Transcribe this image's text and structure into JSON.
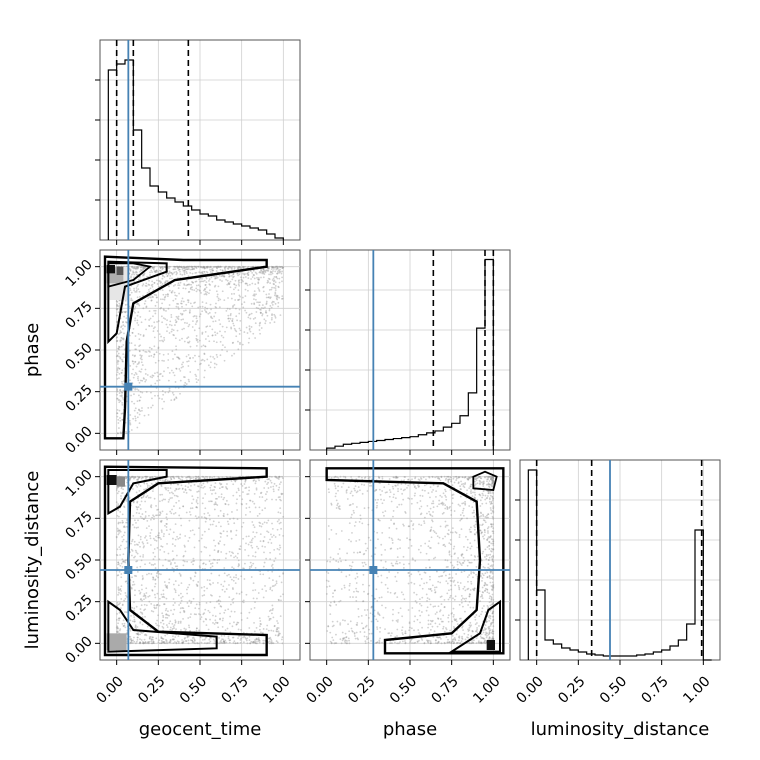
{
  "chart_data": {
    "type": "corner",
    "parameters": [
      "geocent_time",
      "phase",
      "luminosity_distance"
    ],
    "axis_labels": {
      "geocent_time": "geocent_time",
      "phase": "phase",
      "luminosity_distance": "luminosity_distance"
    },
    "tick_values": [
      0.0,
      0.25,
      0.5,
      0.75,
      1.0
    ],
    "tick_labels": [
      "0.00",
      "0.25",
      "0.50",
      "0.75",
      "1.00"
    ],
    "range": [
      -0.1,
      1.1
    ],
    "grid": true,
    "injection": {
      "geocent_time": 0.07,
      "phase": 0.28,
      "luminosity_distance": 0.44
    },
    "injection_color": "#4682b4",
    "quantiles": {
      "geocent_time": [
        0.0,
        0.1,
        0.43
      ],
      "phase": [
        0.64,
        0.95,
        1.0
      ],
      "luminosity_distance": [
        0.0,
        0.33,
        0.99
      ]
    },
    "histograms": {
      "geocent_time": {
        "bin_edges": [
          -0.05,
          0.0,
          0.05,
          0.1,
          0.15,
          0.2,
          0.25,
          0.3,
          0.35,
          0.4,
          0.45,
          0.5,
          0.55,
          0.6,
          0.65,
          0.7,
          0.75,
          0.8,
          0.85,
          0.9,
          0.95,
          1.0
        ],
        "density": [
          0.85,
          0.88,
          0.9,
          0.55,
          0.36,
          0.27,
          0.24,
          0.21,
          0.19,
          0.17,
          0.15,
          0.13,
          0.12,
          0.1,
          0.09,
          0.08,
          0.07,
          0.06,
          0.05,
          0.03,
          0.01
        ],
        "ylim": [
          0,
          1.0
        ]
      },
      "phase": {
        "bin_edges": [
          0.0,
          0.05,
          0.1,
          0.15,
          0.2,
          0.25,
          0.3,
          0.35,
          0.4,
          0.45,
          0.5,
          0.55,
          0.6,
          0.65,
          0.7,
          0.75,
          0.8,
          0.85,
          0.9,
          0.95,
          1.0
        ],
        "density": [
          0.01,
          0.02,
          0.03,
          0.035,
          0.04,
          0.045,
          0.05,
          0.055,
          0.06,
          0.065,
          0.07,
          0.08,
          0.09,
          0.1,
          0.12,
          0.14,
          0.18,
          0.3,
          0.64,
          1.0
        ],
        "ylim": [
          0,
          1.05
        ]
      },
      "luminosity_distance": {
        "bin_edges": [
          -0.05,
          0.0,
          0.05,
          0.1,
          0.15,
          0.2,
          0.25,
          0.3,
          0.35,
          0.4,
          0.45,
          0.5,
          0.55,
          0.6,
          0.65,
          0.7,
          0.75,
          0.8,
          0.85,
          0.9,
          0.95,
          1.0,
          1.05
        ],
        "density": [
          0.95,
          0.35,
          0.1,
          0.08,
          0.06,
          0.05,
          0.04,
          0.03,
          0.025,
          0.02,
          0.02,
          0.02,
          0.02,
          0.025,
          0.03,
          0.04,
          0.05,
          0.07,
          0.1,
          0.18,
          0.65,
          0.0
        ],
        "ylim": [
          0,
          1.0
        ]
      }
    },
    "density_peaks": [
      {
        "x": "geocent_time",
        "y": "phase",
        "peaks": [
          [
            0.03,
            1.0
          ]
        ]
      },
      {
        "x": "geocent_time",
        "y": "luminosity_distance",
        "peaks": [
          [
            0.03,
            1.0
          ],
          [
            0.03,
            0.0
          ]
        ]
      },
      {
        "x": "phase",
        "y": "luminosity_distance",
        "peaks": [
          [
            0.98,
            0.0
          ],
          [
            0.96,
            1.0
          ]
        ]
      }
    ]
  }
}
